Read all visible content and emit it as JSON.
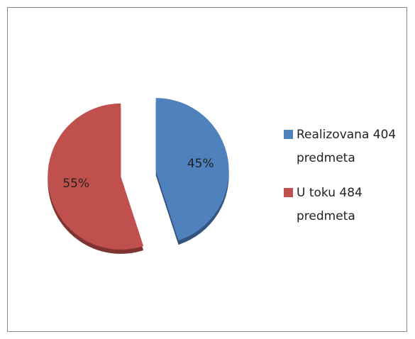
{
  "chart_data": {
    "type": "pie",
    "categories": [
      "Realizovana 404 predmeta",
      "U toku 484 predmeta"
    ],
    "values": [
      45,
      55
    ],
    "value_labels": [
      "45%",
      "55%"
    ],
    "colors": [
      "#4f81bd",
      "#c0504d"
    ],
    "exploded": true,
    "legend": "right"
  }
}
